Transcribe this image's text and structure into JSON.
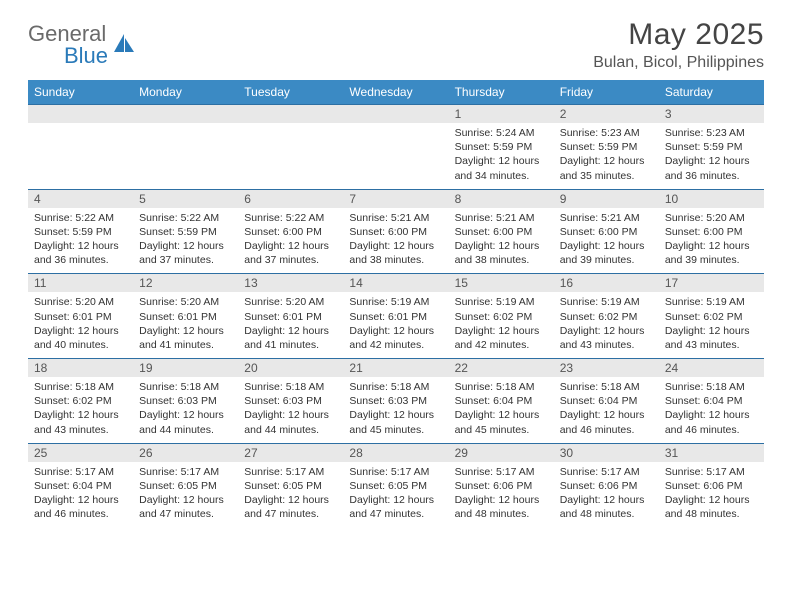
{
  "brand": {
    "word1": "General",
    "word2": "Blue"
  },
  "title": "May 2025",
  "location": "Bulan, Bicol, Philippines",
  "colors": {
    "header_bg": "#3b8ac4",
    "header_text": "#ffffff",
    "daynum_bg": "#e8e8e8",
    "row_border": "#2d6fa3",
    "logo_gray": "#6a6a6a",
    "logo_blue": "#2a7ab9"
  },
  "weekdays": [
    "Sunday",
    "Monday",
    "Tuesday",
    "Wednesday",
    "Thursday",
    "Friday",
    "Saturday"
  ],
  "weeks": [
    [
      null,
      null,
      null,
      null,
      {
        "d": "1",
        "sr": "5:24 AM",
        "ss": "5:59 PM",
        "dl": "12 hours and 34 minutes."
      },
      {
        "d": "2",
        "sr": "5:23 AM",
        "ss": "5:59 PM",
        "dl": "12 hours and 35 minutes."
      },
      {
        "d": "3",
        "sr": "5:23 AM",
        "ss": "5:59 PM",
        "dl": "12 hours and 36 minutes."
      }
    ],
    [
      {
        "d": "4",
        "sr": "5:22 AM",
        "ss": "5:59 PM",
        "dl": "12 hours and 36 minutes."
      },
      {
        "d": "5",
        "sr": "5:22 AM",
        "ss": "5:59 PM",
        "dl": "12 hours and 37 minutes."
      },
      {
        "d": "6",
        "sr": "5:22 AM",
        "ss": "6:00 PM",
        "dl": "12 hours and 37 minutes."
      },
      {
        "d": "7",
        "sr": "5:21 AM",
        "ss": "6:00 PM",
        "dl": "12 hours and 38 minutes."
      },
      {
        "d": "8",
        "sr": "5:21 AM",
        "ss": "6:00 PM",
        "dl": "12 hours and 38 minutes."
      },
      {
        "d": "9",
        "sr": "5:21 AM",
        "ss": "6:00 PM",
        "dl": "12 hours and 39 minutes."
      },
      {
        "d": "10",
        "sr": "5:20 AM",
        "ss": "6:00 PM",
        "dl": "12 hours and 39 minutes."
      }
    ],
    [
      {
        "d": "11",
        "sr": "5:20 AM",
        "ss": "6:01 PM",
        "dl": "12 hours and 40 minutes."
      },
      {
        "d": "12",
        "sr": "5:20 AM",
        "ss": "6:01 PM",
        "dl": "12 hours and 41 minutes."
      },
      {
        "d": "13",
        "sr": "5:20 AM",
        "ss": "6:01 PM",
        "dl": "12 hours and 41 minutes."
      },
      {
        "d": "14",
        "sr": "5:19 AM",
        "ss": "6:01 PM",
        "dl": "12 hours and 42 minutes."
      },
      {
        "d": "15",
        "sr": "5:19 AM",
        "ss": "6:02 PM",
        "dl": "12 hours and 42 minutes."
      },
      {
        "d": "16",
        "sr": "5:19 AM",
        "ss": "6:02 PM",
        "dl": "12 hours and 43 minutes."
      },
      {
        "d": "17",
        "sr": "5:19 AM",
        "ss": "6:02 PM",
        "dl": "12 hours and 43 minutes."
      }
    ],
    [
      {
        "d": "18",
        "sr": "5:18 AM",
        "ss": "6:02 PM",
        "dl": "12 hours and 43 minutes."
      },
      {
        "d": "19",
        "sr": "5:18 AM",
        "ss": "6:03 PM",
        "dl": "12 hours and 44 minutes."
      },
      {
        "d": "20",
        "sr": "5:18 AM",
        "ss": "6:03 PM",
        "dl": "12 hours and 44 minutes."
      },
      {
        "d": "21",
        "sr": "5:18 AM",
        "ss": "6:03 PM",
        "dl": "12 hours and 45 minutes."
      },
      {
        "d": "22",
        "sr": "5:18 AM",
        "ss": "6:04 PM",
        "dl": "12 hours and 45 minutes."
      },
      {
        "d": "23",
        "sr": "5:18 AM",
        "ss": "6:04 PM",
        "dl": "12 hours and 46 minutes."
      },
      {
        "d": "24",
        "sr": "5:18 AM",
        "ss": "6:04 PM",
        "dl": "12 hours and 46 minutes."
      }
    ],
    [
      {
        "d": "25",
        "sr": "5:17 AM",
        "ss": "6:04 PM",
        "dl": "12 hours and 46 minutes."
      },
      {
        "d": "26",
        "sr": "5:17 AM",
        "ss": "6:05 PM",
        "dl": "12 hours and 47 minutes."
      },
      {
        "d": "27",
        "sr": "5:17 AM",
        "ss": "6:05 PM",
        "dl": "12 hours and 47 minutes."
      },
      {
        "d": "28",
        "sr": "5:17 AM",
        "ss": "6:05 PM",
        "dl": "12 hours and 47 minutes."
      },
      {
        "d": "29",
        "sr": "5:17 AM",
        "ss": "6:06 PM",
        "dl": "12 hours and 48 minutes."
      },
      {
        "d": "30",
        "sr": "5:17 AM",
        "ss": "6:06 PM",
        "dl": "12 hours and 48 minutes."
      },
      {
        "d": "31",
        "sr": "5:17 AM",
        "ss": "6:06 PM",
        "dl": "12 hours and 48 minutes."
      }
    ]
  ],
  "labels": {
    "sunrise": "Sunrise:",
    "sunset": "Sunset:",
    "daylight": "Daylight:"
  }
}
